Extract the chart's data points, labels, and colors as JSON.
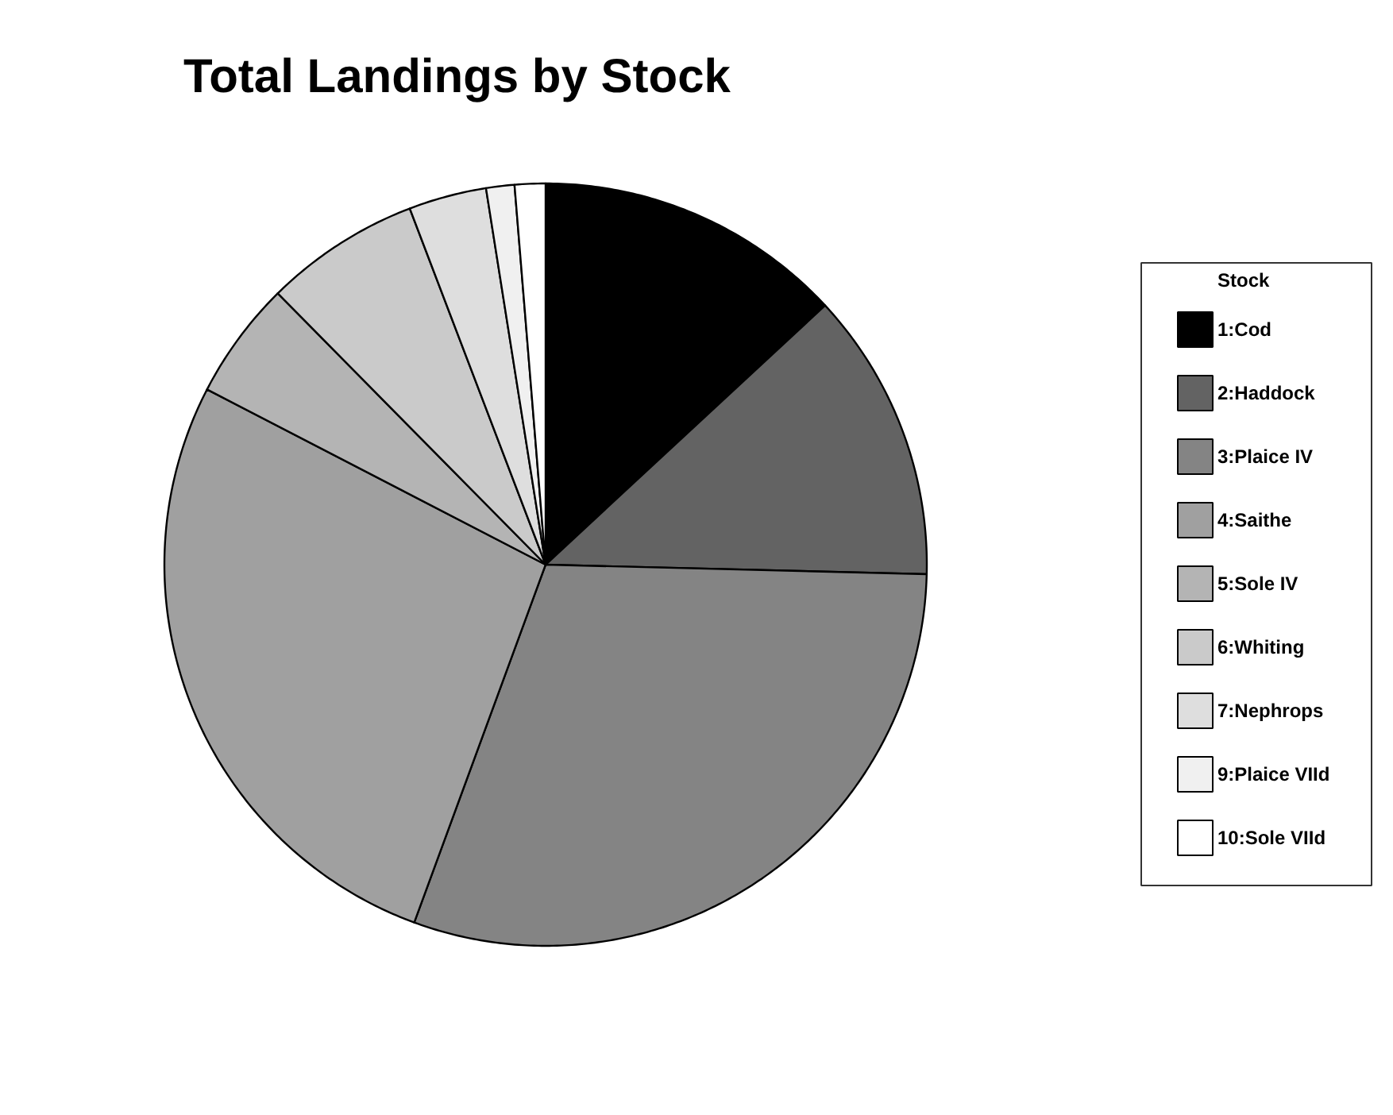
{
  "chart_data": {
    "type": "pie",
    "title": "Total Landings by Stock",
    "legend_title": "Stock",
    "legend": "right",
    "categories": [
      "1:Cod",
      "2:Haddock",
      "3:Plaice IV",
      "4:Saithe",
      "5:Sole IV",
      "6:Whiting",
      "7:Nephrops",
      "9:Plaice VIId",
      "10:Sole VIId"
    ],
    "values": [
      13.1,
      12.3,
      30.2,
      27.0,
      5.0,
      6.6,
      3.3,
      1.2,
      1.3
    ],
    "colors": [
      "#000000",
      "#636363",
      "#848484",
      "#a0a0a0",
      "#b4b4b4",
      "#cacaca",
      "#dedede",
      "#f0f0f0",
      "#ffffff"
    ]
  }
}
